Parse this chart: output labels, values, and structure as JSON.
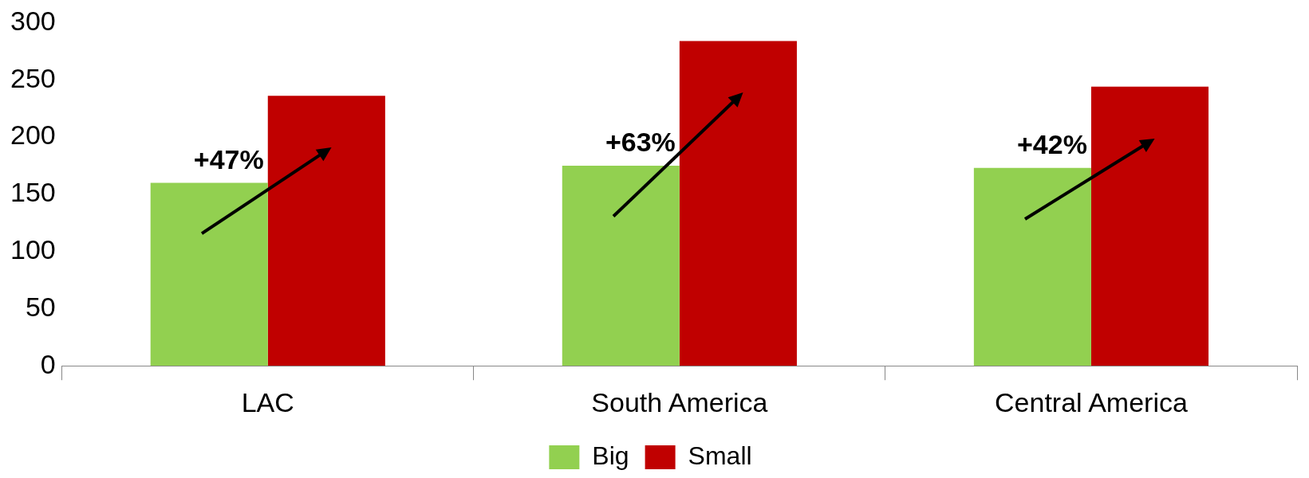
{
  "chart_data": {
    "type": "bar",
    "categories": [
      "LAC",
      "South America",
      "Central America"
    ],
    "series": [
      {
        "name": "Big",
        "color": "#92d050",
        "values": [
          160,
          175,
          173
        ]
      },
      {
        "name": "Small",
        "color": "#c00000",
        "values": [
          236,
          284,
          244
        ]
      }
    ],
    "ylim": [
      0,
      300
    ],
    "yticks": [
      0,
      50,
      100,
      150,
      200,
      250,
      300
    ],
    "grid": false,
    "legend": "bottom",
    "annotations": [
      "+47%",
      "+63%",
      "+42%"
    ]
  }
}
